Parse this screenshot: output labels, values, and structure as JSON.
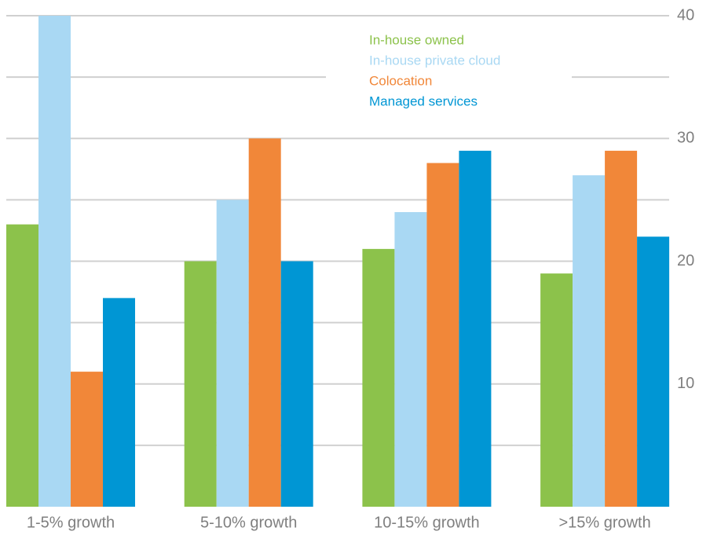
{
  "chart_data": {
    "type": "bar",
    "categories": [
      "1-5% growth",
      "5-10% growth",
      "10-15% growth",
      ">15% growth"
    ],
    "series": [
      {
        "name": "In-house owned",
        "color": "#8cc24b",
        "values": [
          23,
          20,
          21,
          19
        ]
      },
      {
        "name": "In-house private cloud",
        "color": "#a9d8f3",
        "values": [
          40,
          25,
          24,
          27
        ]
      },
      {
        "name": "Colocation",
        "color": "#f18739",
        "values": [
          11,
          30,
          28,
          29
        ]
      },
      {
        "name": "Managed services",
        "color": "#0096d4",
        "values": [
          17,
          20,
          29,
          22
        ]
      }
    ],
    "ylim": [
      0,
      40
    ],
    "yticks": [
      10,
      20,
      30,
      40
    ],
    "minor_yticks": [
      5,
      15,
      25,
      35
    ],
    "grid": true,
    "legend": "top"
  }
}
